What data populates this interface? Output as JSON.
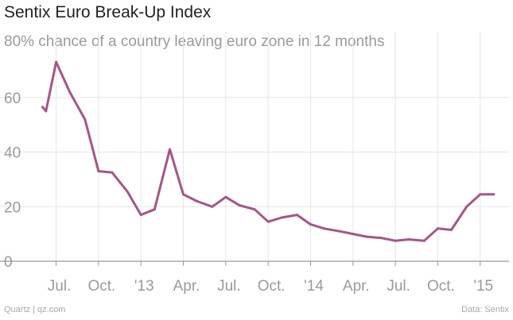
{
  "header": {
    "title": "Sentix Euro Break-Up Index",
    "subtitle": "80% chance of a country leaving euro zone in 12 months"
  },
  "footer": {
    "source_left": "Quartz | qz.com",
    "source_right": "Data: Sentix"
  },
  "colors": {
    "line": "#a85487",
    "grid": "#e6e6e6",
    "axis": "#999999"
  },
  "chart_data": {
    "type": "line",
    "title": "Sentix Euro Break-Up Index",
    "subtitle": "80% chance of a country leaving euro zone in 12 months",
    "xlabel": "",
    "ylabel": "",
    "ylim": [
      0,
      80
    ],
    "xlim": [
      2012.38,
      2015.17
    ],
    "y_ticks": [
      0,
      20,
      40,
      60
    ],
    "y_tick_labels": [
      "0",
      "20",
      "40",
      "60"
    ],
    "x_ticks": [
      2012.5,
      2012.75,
      2013.0,
      2013.25,
      2013.5,
      2013.75,
      2014.0,
      2014.25,
      2014.5,
      2014.75,
      2015.0
    ],
    "x_tick_labels": [
      "Jul.",
      "Oct.",
      "'13",
      "Apr.",
      "Jul.",
      "Oct.",
      "'14",
      "Apr.",
      "Jul.",
      "Oct.",
      "'15"
    ],
    "grid": true,
    "series": [
      {
        "name": "Sentix Euro Break-Up Index",
        "x": [
          2012.42,
          2012.44,
          2012.5,
          2012.58,
          2012.67,
          2012.75,
          2012.83,
          2012.92,
          2013.0,
          2013.08,
          2013.17,
          2013.25,
          2013.33,
          2013.42,
          2013.5,
          2013.58,
          2013.67,
          2013.75,
          2013.83,
          2013.92,
          2014.0,
          2014.08,
          2014.17,
          2014.25,
          2014.33,
          2014.42,
          2014.5,
          2014.58,
          2014.67,
          2014.75,
          2014.83,
          2014.92,
          2015.0,
          2015.08
        ],
        "values": [
          56.5,
          55,
          73,
          62,
          52,
          33,
          32.5,
          25.5,
          17,
          19,
          41,
          24.5,
          22,
          20,
          23.5,
          20.5,
          19,
          14.5,
          16,
          17,
          13.5,
          12,
          11,
          10,
          9,
          8.5,
          7.5,
          8,
          7.5,
          12,
          11.5,
          20,
          24.5,
          24.5
        ]
      }
    ]
  }
}
